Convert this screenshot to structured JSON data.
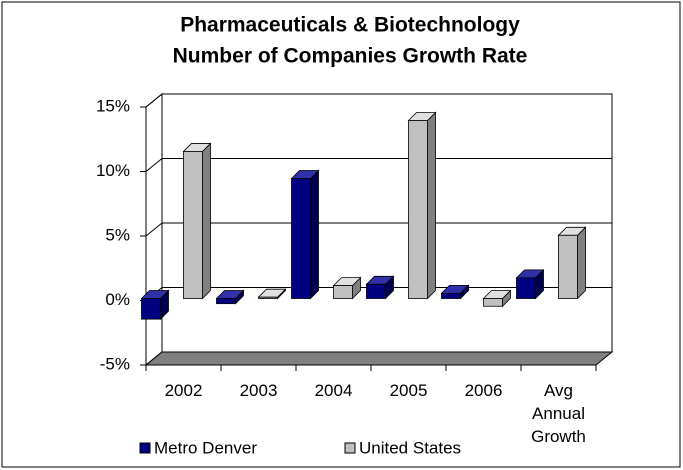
{
  "chart_data": {
    "type": "bar3d",
    "title_lines": [
      "Pharmaceuticals & Biotechnology",
      "Number of Companies Growth Rate"
    ],
    "categories": [
      "2002",
      "2003",
      "2004",
      "2005",
      "2006",
      "Avg Annual Growth"
    ],
    "series": [
      {
        "name": "Metro Denver",
        "color": "#000080",
        "values": [
          -1.6,
          -0.4,
          9.3,
          1.1,
          0.4,
          1.6
        ]
      },
      {
        "name": "United States",
        "color": "#c0c0c0",
        "values": [
          11.4,
          0.1,
          1.0,
          13.8,
          -0.6,
          4.9
        ]
      }
    ],
    "ylim": [
      -5,
      15
    ],
    "yticks": [
      {
        "value": -5,
        "label": "-5%"
      },
      {
        "value": 0,
        "label": "0%"
      },
      {
        "value": 5,
        "label": "5%"
      },
      {
        "value": 10,
        "label": "10%"
      },
      {
        "value": 15,
        "label": "15%"
      }
    ],
    "grid": true,
    "legend": "bottom"
  }
}
